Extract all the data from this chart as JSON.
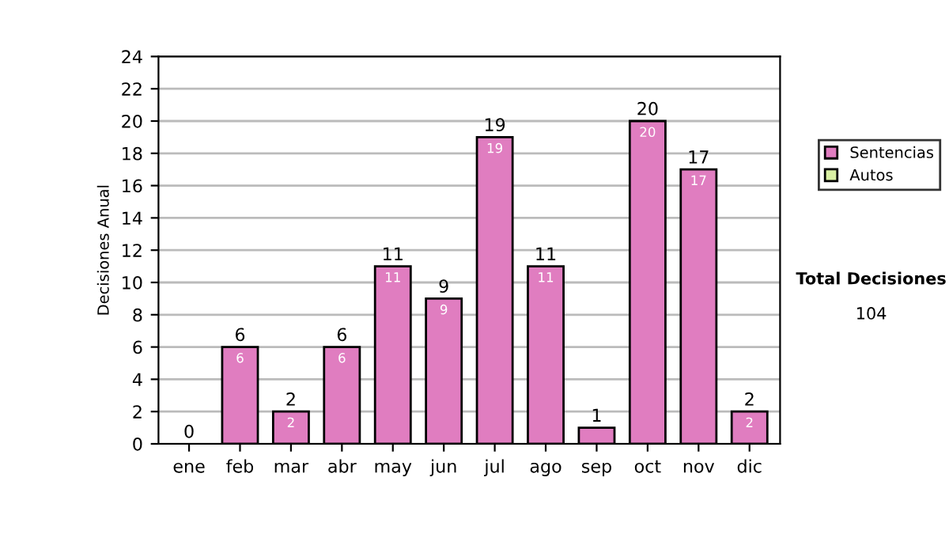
{
  "chart_data": {
    "type": "bar",
    "ylabel": "Decisiones Anual",
    "categories": [
      "ene",
      "feb",
      "mar",
      "abr",
      "may",
      "jun",
      "jul",
      "ago",
      "sep",
      "oct",
      "nov",
      "dic"
    ],
    "stacked": true,
    "series": [
      {
        "name": "Sentencias",
        "color": "#e07dc0",
        "values": [
          0,
          6,
          2,
          6,
          11,
          9,
          19,
          11,
          1,
          20,
          17,
          2
        ],
        "value_labels": [
          null,
          "6",
          "2",
          "6",
          "11",
          "9",
          "19",
          "11",
          null,
          "20",
          "17",
          "2"
        ]
      },
      {
        "name": "Autos",
        "color": "#d9f0a3",
        "values": [
          0,
          0,
          0,
          0,
          0,
          0,
          0,
          0,
          0,
          0,
          0,
          0
        ]
      }
    ],
    "totals": [
      "0",
      "6",
      "2",
      "6",
      "11",
      "9",
      "19",
      "11",
      "1",
      "20",
      "17",
      "2"
    ],
    "ylim": [
      0,
      24
    ],
    "yticks": [
      0,
      2,
      4,
      6,
      8,
      10,
      12,
      14,
      16,
      18,
      20,
      22,
      24
    ],
    "grid": "y",
    "legend": "right",
    "annotations": [
      "Total Decisiones",
      "104"
    ]
  }
}
